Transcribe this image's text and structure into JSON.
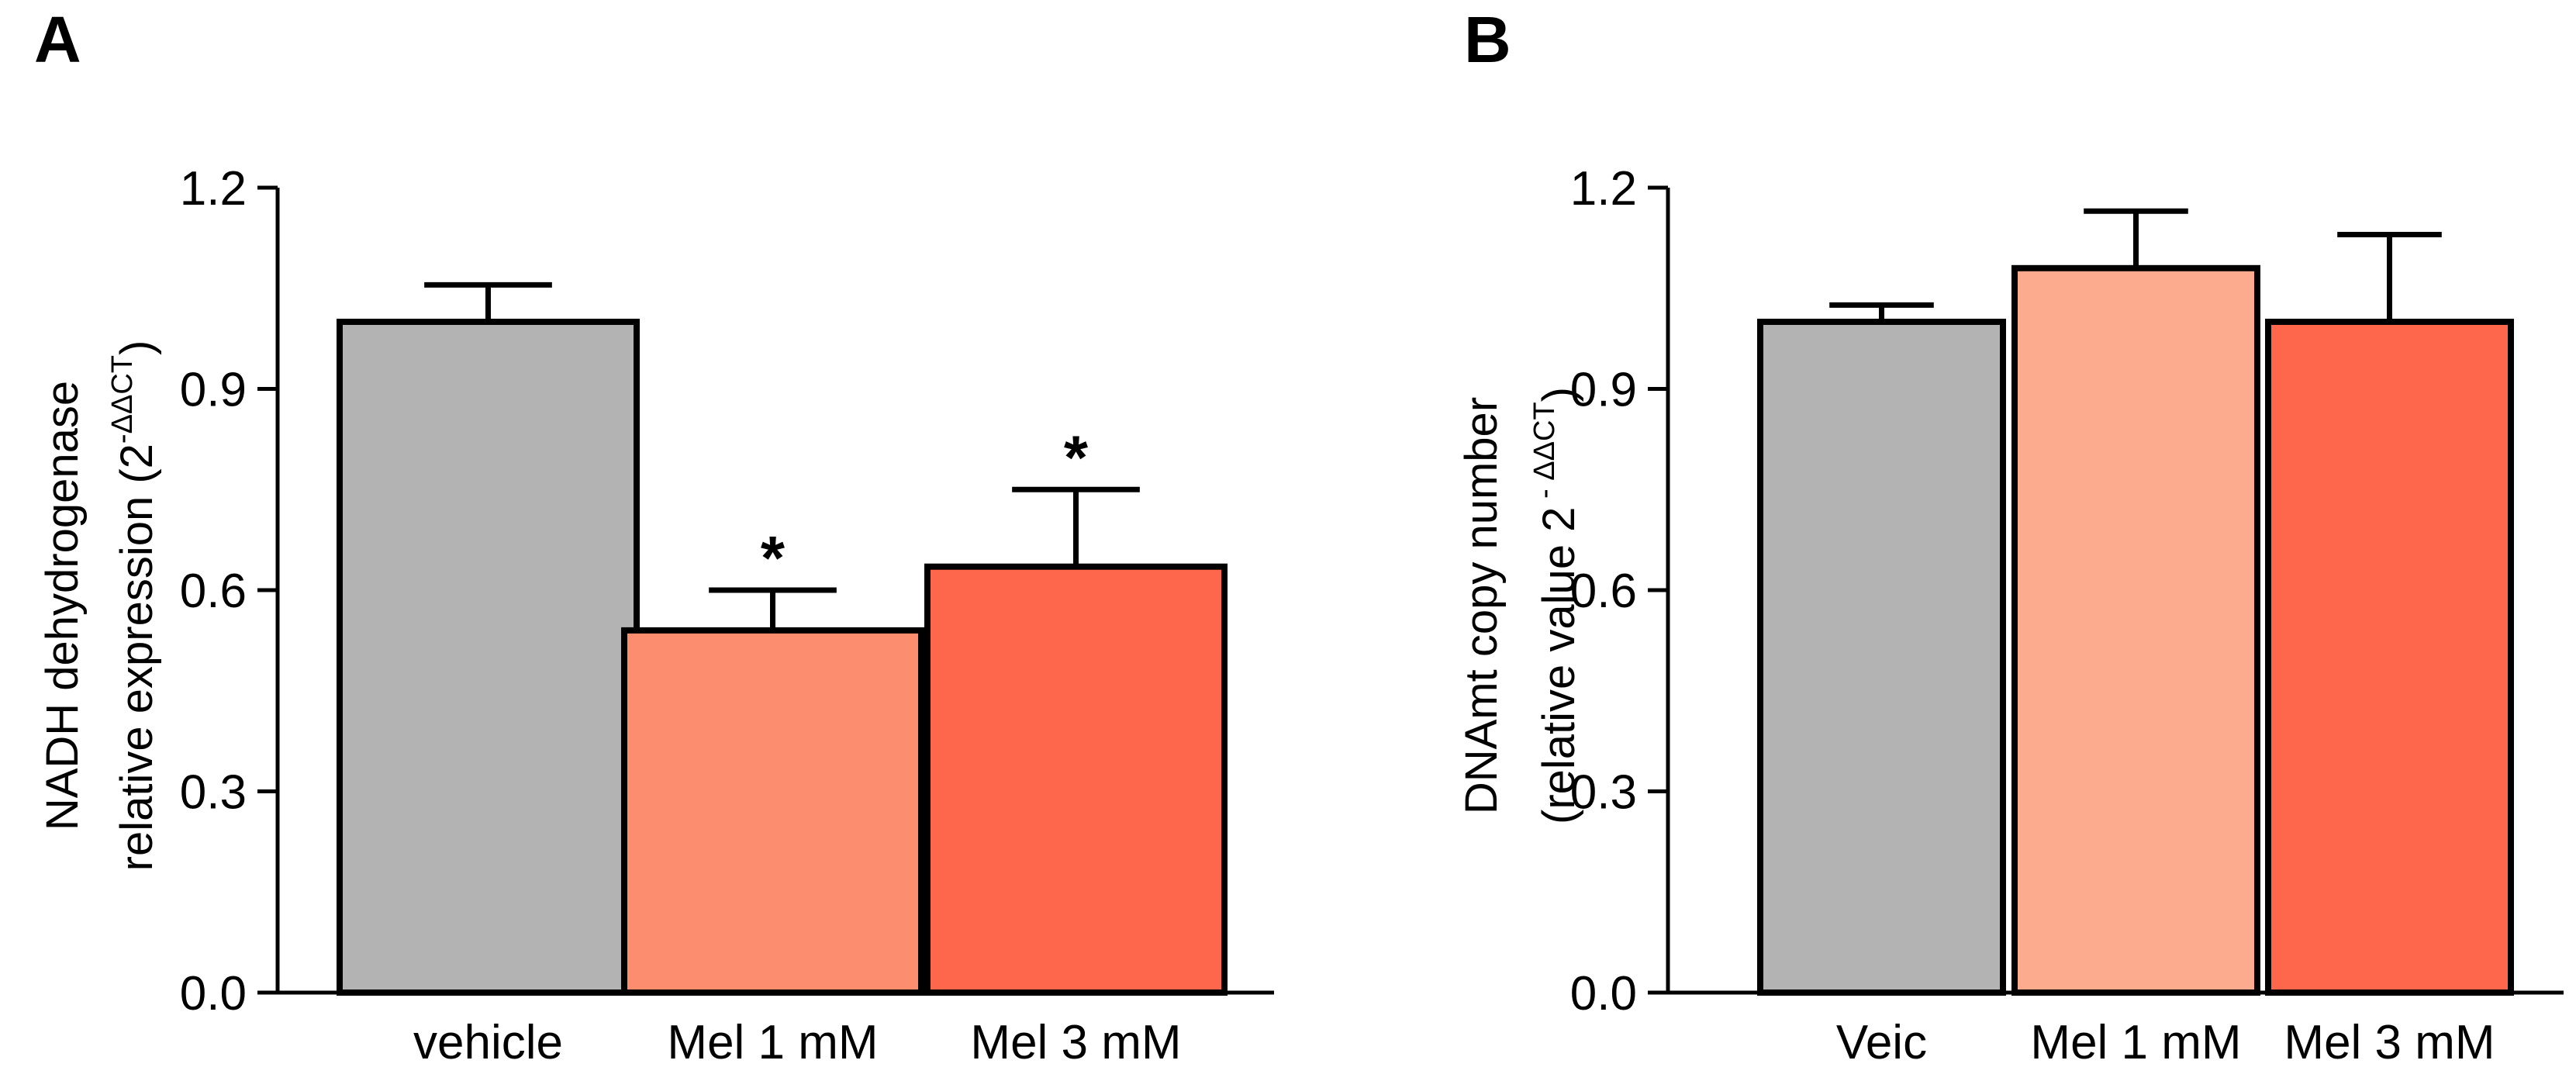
{
  "chart_data": [
    {
      "type": "bar",
      "panel_label": "A",
      "categories": [
        "vehicle",
        "Mel 1 mM",
        "Mel 3 mM"
      ],
      "values": [
        1.0,
        0.54,
        0.635
      ],
      "error_bars": [
        0.055,
        0.06,
        0.115
      ],
      "significance": [
        "",
        "*",
        "*"
      ],
      "colors": [
        "#b3b3b3",
        "#fc8d6f",
        "#ff674d"
      ],
      "ylabel_line1": "NADH dehydrogenase",
      "ylabel_line2_prefix": "relative expression (2",
      "ylabel_line2_sup": "-ΔΔCT",
      "ylabel_line2_suffix": ")",
      "ylim": [
        0,
        1.2
      ],
      "yticks": [
        "0.0",
        "0.3",
        "0.6",
        "0.9",
        "1.2"
      ]
    },
    {
      "type": "bar",
      "panel_label": "B",
      "categories": [
        "Veic",
        "Mel 1 mM",
        "Mel 3 mM"
      ],
      "values": [
        1.0,
        1.08,
        1.0
      ],
      "error_bars": [
        0.025,
        0.085,
        0.13
      ],
      "significance": [
        "",
        "",
        ""
      ],
      "colors": [
        "#b3b3b3",
        "#fdab8f",
        "#ff674d"
      ],
      "ylabel_line1": "DNAmt copy number",
      "ylabel_line2_prefix": "(relative value 2",
      "ylabel_line2_sup": " - ΔΔCT",
      "ylabel_line2_suffix": ")",
      "ylim": [
        0,
        1.2
      ],
      "yticks": [
        "0.0",
        "0.3",
        "0.6",
        "0.9",
        "1.2"
      ]
    }
  ]
}
